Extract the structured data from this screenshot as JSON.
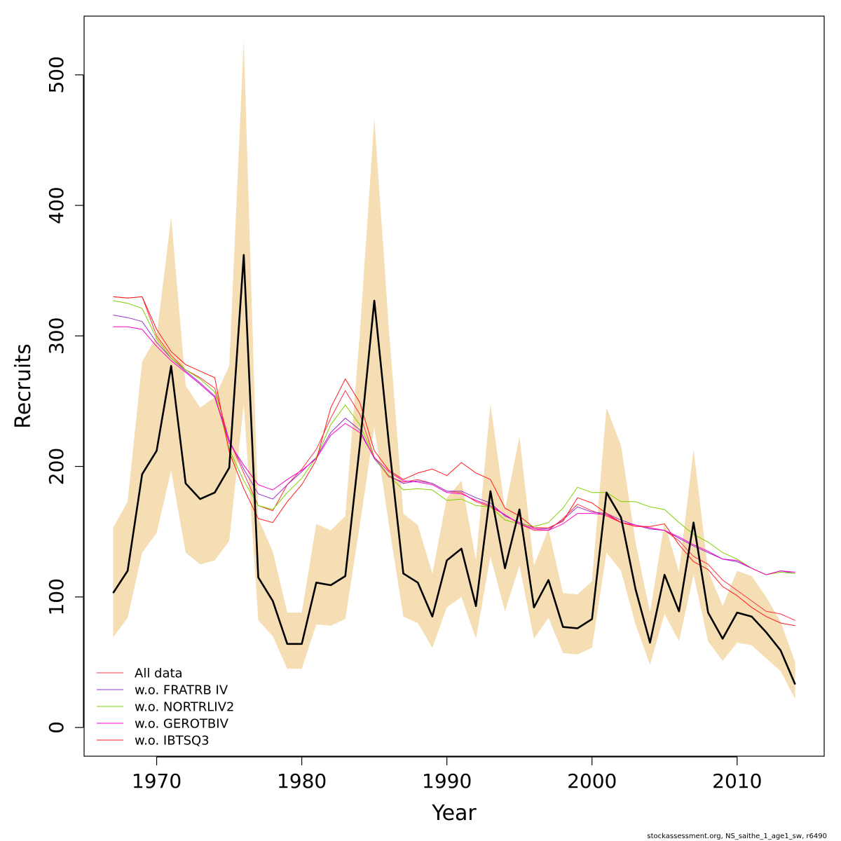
{
  "chart_data": {
    "type": "line",
    "title": "",
    "xlabel": "Year",
    "ylabel": "Recruits",
    "xlim": [
      1965,
      2016
    ],
    "ylim": [
      -22,
      545
    ],
    "x_ticks": [
      1970,
      1980,
      1990,
      2000,
      2010
    ],
    "x_tick_labels": [
      "1970",
      "1980",
      "1990",
      "2000",
      "2010"
    ],
    "y_ticks": [
      0,
      100,
      200,
      300,
      400,
      500
    ],
    "y_tick_labels": [
      "0",
      "100",
      "200",
      "300",
      "400",
      "500"
    ],
    "grid": false,
    "legend_position": "bottom-left",
    "years": [
      1967,
      1968,
      1969,
      1970,
      1971,
      1972,
      1973,
      1974,
      1975,
      1976,
      1977,
      1978,
      1979,
      1980,
      1981,
      1982,
      1983,
      1984,
      1985,
      1986,
      1987,
      1988,
      1989,
      1990,
      1991,
      1992,
      1993,
      1994,
      1995,
      1996,
      1997,
      1998,
      1999,
      2000,
      2001,
      2002,
      2003,
      2004,
      2005,
      2006,
      2007,
      2008,
      2009,
      2010,
      2011,
      2012,
      2013,
      2014
    ],
    "estimate": {
      "color": "#000000",
      "values": [
        103,
        120,
        194,
        212,
        277,
        187,
        175,
        180,
        199,
        362,
        115,
        97,
        64,
        64,
        111,
        109,
        116,
        216,
        327,
        218,
        118,
        111,
        85,
        128,
        137,
        93,
        181,
        122,
        167,
        92,
        113,
        77,
        76,
        83,
        180,
        161,
        106,
        65,
        117,
        89,
        157,
        88,
        68,
        88,
        85,
        73,
        59,
        33
      ]
    },
    "band": {
      "color": "#f5deb3",
      "lower": [
        69,
        84,
        134,
        149,
        197,
        134,
        125,
        128,
        143,
        248,
        82,
        70,
        45,
        45,
        79,
        78,
        83,
        155,
        230,
        156,
        85,
        80,
        61,
        92,
        100,
        68,
        131,
        89,
        124,
        68,
        84,
        57,
        56,
        61,
        134,
        120,
        79,
        48,
        87,
        66,
        117,
        66,
        51,
        65,
        63,
        53,
        43,
        22
      ],
      "upper": [
        153,
        173,
        280,
        300,
        391,
        262,
        245,
        253,
        277,
        527,
        160,
        135,
        88,
        88,
        156,
        151,
        162,
        302,
        467,
        306,
        164,
        155,
        118,
        176,
        189,
        128,
        248,
        167,
        223,
        124,
        152,
        103,
        102,
        112,
        245,
        216,
        142,
        88,
        157,
        119,
        213,
        120,
        93,
        120,
        116,
        100,
        81,
        50
      ]
    },
    "series": [
      {
        "name": "All data",
        "color": "#ff3344",
        "values": [
          330,
          329,
          330,
          300,
          285,
          274,
          268,
          260,
          220,
          195,
          170,
          166,
          186,
          198,
          213,
          237,
          258,
          240,
          207,
          192,
          188,
          190,
          187,
          181,
          180,
          173,
          169,
          163,
          156,
          151,
          151,
          160,
          171,
          166,
          162,
          157,
          155,
          153,
          151,
          143,
          131,
          125,
          113,
          105,
          97,
          89,
          87,
          82
        ]
      },
      {
        "name": "w.o. FRATRB IV",
        "color": "#9932cc",
        "values": [
          316,
          314,
          311,
          295,
          283,
          273,
          264,
          254,
          220,
          198,
          179,
          175,
          186,
          196,
          207,
          226,
          237,
          228,
          206,
          193,
          187,
          189,
          187,
          181,
          181,
          176,
          172,
          162,
          157,
          153,
          152,
          159,
          169,
          165,
          164,
          159,
          155,
          152,
          151,
          145,
          139,
          134,
          129,
          127,
          122,
          117,
          120,
          118
        ]
      },
      {
        "name": "w.o. NORTRLIV2",
        "color": "#7fd000",
        "values": [
          327,
          325,
          321,
          298,
          283,
          274,
          267,
          257,
          213,
          189,
          170,
          167,
          180,
          191,
          207,
          232,
          247,
          232,
          207,
          193,
          182,
          183,
          182,
          174,
          175,
          170,
          169,
          159,
          156,
          154,
          157,
          168,
          184,
          180,
          180,
          173,
          173,
          169,
          167,
          157,
          148,
          142,
          134,
          129,
          122,
          117,
          119,
          118
        ]
      },
      {
        "name": "w.o. GEROTBIV",
        "color": "#ff00cc",
        "values": [
          307,
          307,
          305,
          292,
          281,
          272,
          263,
          253,
          218,
          201,
          186,
          182,
          190,
          197,
          206,
          224,
          233,
          226,
          207,
          196,
          189,
          188,
          186,
          180,
          179,
          174,
          170,
          163,
          156,
          152,
          151,
          156,
          164,
          164,
          163,
          157,
          155,
          153,
          151,
          146,
          140,
          135,
          129,
          128,
          122,
          117,
          120,
          119
        ]
      },
      {
        "name": "w.o. IBTSQ3",
        "color": "#ff1a1a",
        "values": [
          330,
          329,
          330,
          305,
          288,
          278,
          273,
          268,
          211,
          183,
          160,
          157,
          173,
          186,
          205,
          245,
          267,
          249,
          212,
          197,
          190,
          195,
          198,
          193,
          203,
          195,
          190,
          168,
          162,
          153,
          153,
          158,
          176,
          172,
          164,
          157,
          154,
          154,
          156,
          140,
          127,
          121,
          108,
          101,
          92,
          85,
          80,
          78
        ]
      }
    ],
    "footnote": "stockassessment.org, NS_saithe_1_age1_sw, r6490"
  }
}
